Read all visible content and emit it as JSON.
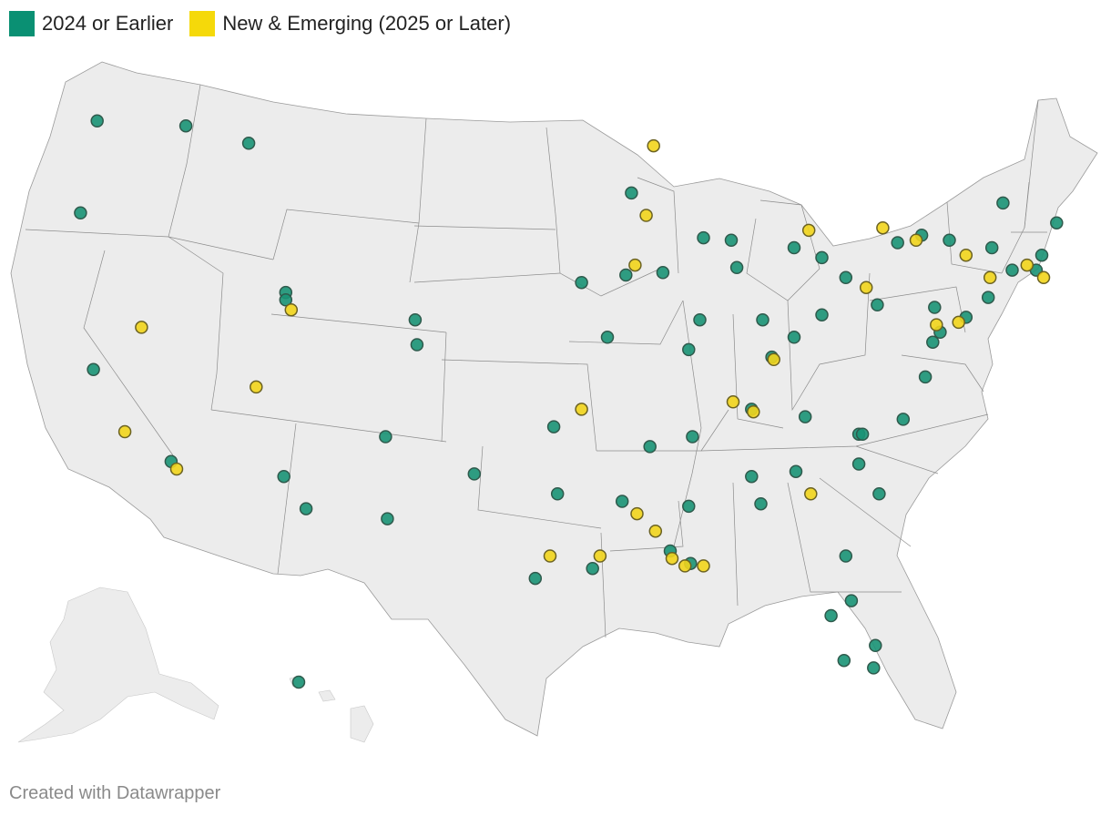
{
  "legend": {
    "items": [
      {
        "label": "2024 or Earlier",
        "color": "#0a9073"
      },
      {
        "label": "New & Emerging (2025 or Later)",
        "color": "#f5d90a"
      }
    ]
  },
  "credit": "Created with Datawrapper",
  "colors": {
    "land": "#ececec",
    "border": "#8c8c8c",
    "earlier": "#1a9376",
    "new": "#f2d51c"
  },
  "chart_data": {
    "type": "scatter",
    "series": [
      {
        "name": "2024 or Earlier",
        "color": "#1a9376",
        "points": [
          {
            "lon": -122.2,
            "lat": 47.8
          },
          {
            "lon": -117.4,
            "lat": 47.6
          },
          {
            "lon": -114.0,
            "lat": 46.9
          },
          {
            "lon": -123.1,
            "lat": 44.1
          },
          {
            "lon": -122.4,
            "lat": 37.8
          },
          {
            "lon": -118.2,
            "lat": 34.1
          },
          {
            "lon": -112.0,
            "lat": 40.9
          },
          {
            "lon": -112.0,
            "lat": 40.6
          },
          {
            "lon": -105.0,
            "lat": 39.8
          },
          {
            "lon": -104.9,
            "lat": 38.8
          },
          {
            "lon": -112.1,
            "lat": 33.5
          },
          {
            "lon": -110.9,
            "lat": 32.2
          },
          {
            "lon": -106.6,
            "lat": 35.1
          },
          {
            "lon": -106.5,
            "lat": 31.8
          },
          {
            "lon": -101.8,
            "lat": 33.6
          },
          {
            "lon": -97.5,
            "lat": 35.5
          },
          {
            "lon": -97.3,
            "lat": 32.8
          },
          {
            "lon": -98.5,
            "lat": 29.4
          },
          {
            "lon": -95.4,
            "lat": 29.8
          },
          {
            "lon": -157.9,
            "lat": 21.3
          },
          {
            "lon": -96.0,
            "lat": 41.3
          },
          {
            "lon": -94.6,
            "lat": 39.1
          },
          {
            "lon": -90.2,
            "lat": 38.6
          },
          {
            "lon": -93.3,
            "lat": 44.9
          },
          {
            "lon": -91.6,
            "lat": 41.7
          },
          {
            "lon": -93.6,
            "lat": 41.6
          },
          {
            "lon": -89.4,
            "lat": 43.1
          },
          {
            "lon": -87.9,
            "lat": 43.0
          },
          {
            "lon": -87.6,
            "lat": 41.9
          },
          {
            "lon": -89.6,
            "lat": 39.8
          },
          {
            "lon": -86.2,
            "lat": 39.8
          },
          {
            "lon": -85.7,
            "lat": 38.3
          },
          {
            "lon": -84.5,
            "lat": 39.1
          },
          {
            "lon": -83.0,
            "lat": 40.0
          },
          {
            "lon": -81.7,
            "lat": 41.5
          },
          {
            "lon": -80.0,
            "lat": 40.4
          },
          {
            "lon": -83.0,
            "lat": 42.3
          },
          {
            "lon": -84.5,
            "lat": 42.7
          },
          {
            "lon": -86.8,
            "lat": 36.2
          },
          {
            "lon": -90.0,
            "lat": 35.1
          },
          {
            "lon": -92.3,
            "lat": 34.7
          },
          {
            "lon": -86.8,
            "lat": 33.5
          },
          {
            "lon": -86.3,
            "lat": 32.4
          },
          {
            "lon": -84.4,
            "lat": 33.7
          },
          {
            "lon": -83.9,
            "lat": 35.9
          },
          {
            "lon": -81.0,
            "lat": 35.2
          },
          {
            "lon": -80.8,
            "lat": 35.2
          },
          {
            "lon": -78.6,
            "lat": 35.8
          },
          {
            "lon": -79.9,
            "lat": 32.8
          },
          {
            "lon": -81.0,
            "lat": 34.0
          },
          {
            "lon": -81.7,
            "lat": 30.3
          },
          {
            "lon": -82.5,
            "lat": 27.9
          },
          {
            "lon": -81.4,
            "lat": 28.5
          },
          {
            "lon": -80.2,
            "lat": 25.8
          },
          {
            "lon": -80.1,
            "lat": 26.7
          },
          {
            "lon": -81.8,
            "lat": 26.1
          },
          {
            "lon": -77.4,
            "lat": 37.5
          },
          {
            "lon": -77.0,
            "lat": 38.9
          },
          {
            "lon": -76.6,
            "lat": 39.3
          },
          {
            "lon": -75.2,
            "lat": 39.9
          },
          {
            "lon": -74.0,
            "lat": 40.7
          },
          {
            "lon": -73.8,
            "lat": 42.7
          },
          {
            "lon": -76.1,
            "lat": 43.0
          },
          {
            "lon": -77.6,
            "lat": 43.2
          },
          {
            "lon": -78.9,
            "lat": 42.9
          },
          {
            "lon": -72.7,
            "lat": 41.8
          },
          {
            "lon": -71.4,
            "lat": 41.8
          },
          {
            "lon": -71.1,
            "lat": 42.4
          },
          {
            "lon": -70.3,
            "lat": 43.7
          },
          {
            "lon": -73.2,
            "lat": 44.5
          },
          {
            "lon": -76.9,
            "lat": 40.3
          },
          {
            "lon": -90.1,
            "lat": 30.0
          },
          {
            "lon": -91.2,
            "lat": 30.5
          },
          {
            "lon": -93.8,
            "lat": 32.5
          },
          {
            "lon": -90.2,
            "lat": 32.3
          }
        ]
      },
      {
        "name": "New & Emerging (2025 or Later)",
        "color": "#f2d51c",
        "points": [
          {
            "lon": -119.8,
            "lat": 39.5
          },
          {
            "lon": -120.7,
            "lat": 35.3
          },
          {
            "lon": -117.9,
            "lat": 33.8
          },
          {
            "lon": -113.6,
            "lat": 37.1
          },
          {
            "lon": -111.7,
            "lat": 40.2
          },
          {
            "lon": -92.1,
            "lat": 46.8
          },
          {
            "lon": -92.5,
            "lat": 44.0
          },
          {
            "lon": -93.1,
            "lat": 42.0
          },
          {
            "lon": -85.6,
            "lat": 38.2
          },
          {
            "lon": -87.8,
            "lat": 36.5
          },
          {
            "lon": -86.7,
            "lat": 36.1
          },
          {
            "lon": -83.6,
            "lat": 32.8
          },
          {
            "lon": -96.0,
            "lat": 36.2
          },
          {
            "lon": -97.7,
            "lat": 30.3
          },
          {
            "lon": -95.0,
            "lat": 30.3
          },
          {
            "lon": -92.0,
            "lat": 31.3
          },
          {
            "lon": -93.0,
            "lat": 32.0
          },
          {
            "lon": -91.1,
            "lat": 30.2
          },
          {
            "lon": -90.4,
            "lat": 29.9
          },
          {
            "lon": -89.4,
            "lat": 29.9
          },
          {
            "lon": -83.7,
            "lat": 43.4
          },
          {
            "lon": -80.6,
            "lat": 41.1
          },
          {
            "lon": -79.7,
            "lat": 43.5
          },
          {
            "lon": -77.9,
            "lat": 43.0
          },
          {
            "lon": -75.2,
            "lat": 42.4
          },
          {
            "lon": -73.9,
            "lat": 41.5
          },
          {
            "lon": -71.9,
            "lat": 42.0
          },
          {
            "lon": -71.0,
            "lat": 41.5
          },
          {
            "lon": -75.6,
            "lat": 39.7
          },
          {
            "lon": -76.8,
            "lat": 39.6
          }
        ]
      }
    ]
  }
}
